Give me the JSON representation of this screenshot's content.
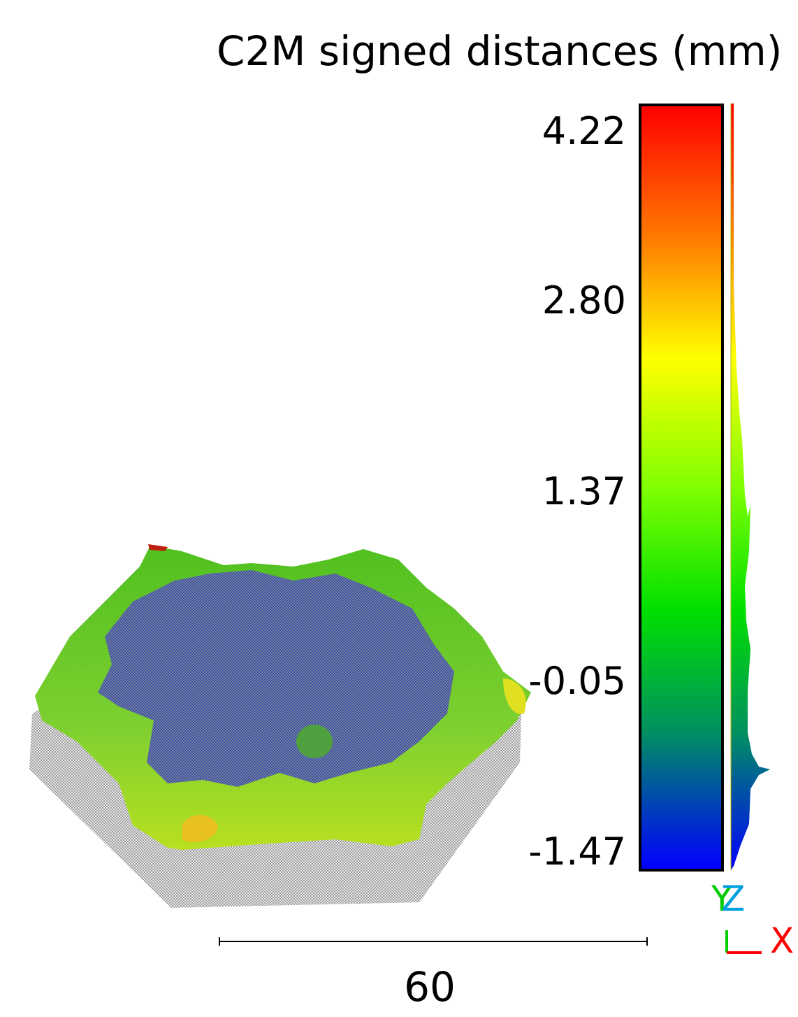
{
  "title": "C2M signed distances (mm)",
  "colorbar": {
    "ticks": [
      "4.22",
      "2.80",
      "1.37",
      "-0.05",
      "-1.47"
    ],
    "colors": {
      "max": "#ff0000",
      "mid_high": "#ffff00",
      "mid": "#00e000",
      "min": "#0000ff"
    }
  },
  "scale": {
    "label": "60"
  },
  "axes": {
    "x_label": "X",
    "y_label": "Y",
    "z_label": "Z"
  },
  "model": {
    "icon": "hexagon-surface-icon"
  }
}
